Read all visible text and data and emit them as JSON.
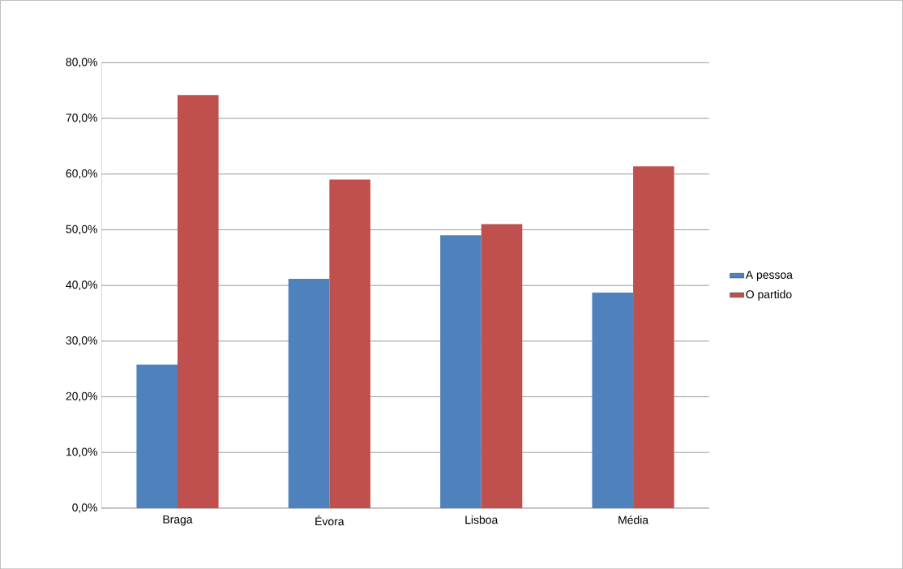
{
  "chart_data": {
    "type": "bar",
    "categories": [
      "Braga",
      "Évora",
      "Lisboa",
      "Média"
    ],
    "series": [
      {
        "name": "A pessoa",
        "color": "#4f81bd",
        "values": [
          25.8,
          41.2,
          49.0,
          38.7
        ]
      },
      {
        "name": "O partido",
        "color": "#c0504d",
        "values": [
          74.2,
          59.0,
          51.0,
          61.4
        ]
      }
    ],
    "ylim": [
      0,
      80
    ],
    "yticks": [
      {
        "value": 0,
        "label": "0,0%"
      },
      {
        "value": 10,
        "label": "10,0%"
      },
      {
        "value": 20,
        "label": "20,0%"
      },
      {
        "value": 30,
        "label": "30,0%"
      },
      {
        "value": 40,
        "label": "40,0%"
      },
      {
        "value": 50,
        "label": "50,0%"
      },
      {
        "value": 60,
        "label": "60,0%"
      },
      {
        "value": 70,
        "label": "70,0%"
      },
      {
        "value": 80,
        "label": "80,0%"
      }
    ],
    "grid": "y",
    "legend": "right"
  }
}
